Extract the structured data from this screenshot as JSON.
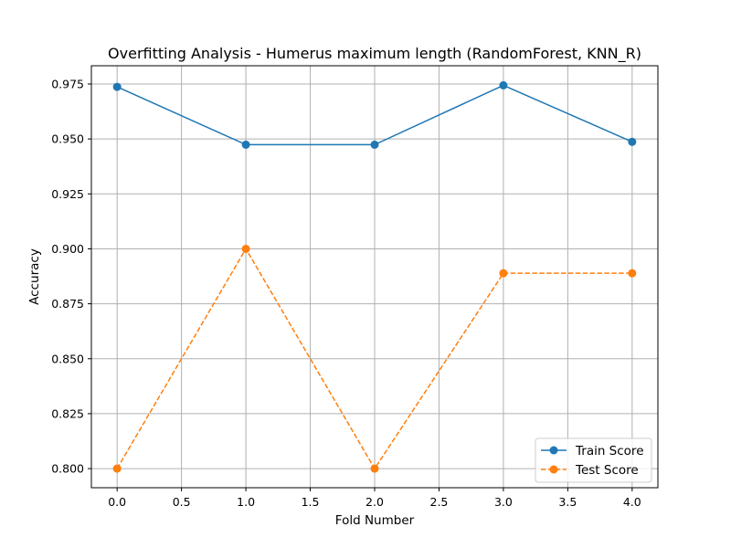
{
  "chart_data": {
    "type": "line",
    "title": "Overfitting Analysis - Humerus maximum length (RandomForest, KNN_R)",
    "xlabel": "Fold Number",
    "ylabel": "Accuracy",
    "xlim": [
      -0.2,
      4.2
    ],
    "ylim": [
      0.7913,
      0.9833
    ],
    "xticks": [
      0.0,
      0.5,
      1.0,
      1.5,
      2.0,
      2.5,
      3.0,
      3.5,
      4.0
    ],
    "xtick_labels": [
      "0.0",
      "0.5",
      "1.0",
      "1.5",
      "2.0",
      "2.5",
      "3.0",
      "3.5",
      "4.0"
    ],
    "yticks": [
      0.8,
      0.825,
      0.85,
      0.875,
      0.9,
      0.925,
      0.95,
      0.975
    ],
    "ytick_labels": [
      "0.800",
      "0.825",
      "0.850",
      "0.875",
      "0.900",
      "0.925",
      "0.950",
      "0.975"
    ],
    "grid": true,
    "legend_position": "lower-right",
    "x": [
      0,
      1,
      2,
      3,
      4
    ],
    "series": [
      {
        "name": "Train Score",
        "values": [
          0.9737,
          0.9474,
          0.9474,
          0.9744,
          0.9487
        ],
        "color": "#1f77b4",
        "linestyle": "solid",
        "marker": "circle"
      },
      {
        "name": "Test Score",
        "values": [
          0.8,
          0.9,
          0.8,
          0.8889,
          0.8889
        ],
        "color": "#ff7f0e",
        "linestyle": "dashed",
        "marker": "circle"
      }
    ]
  }
}
